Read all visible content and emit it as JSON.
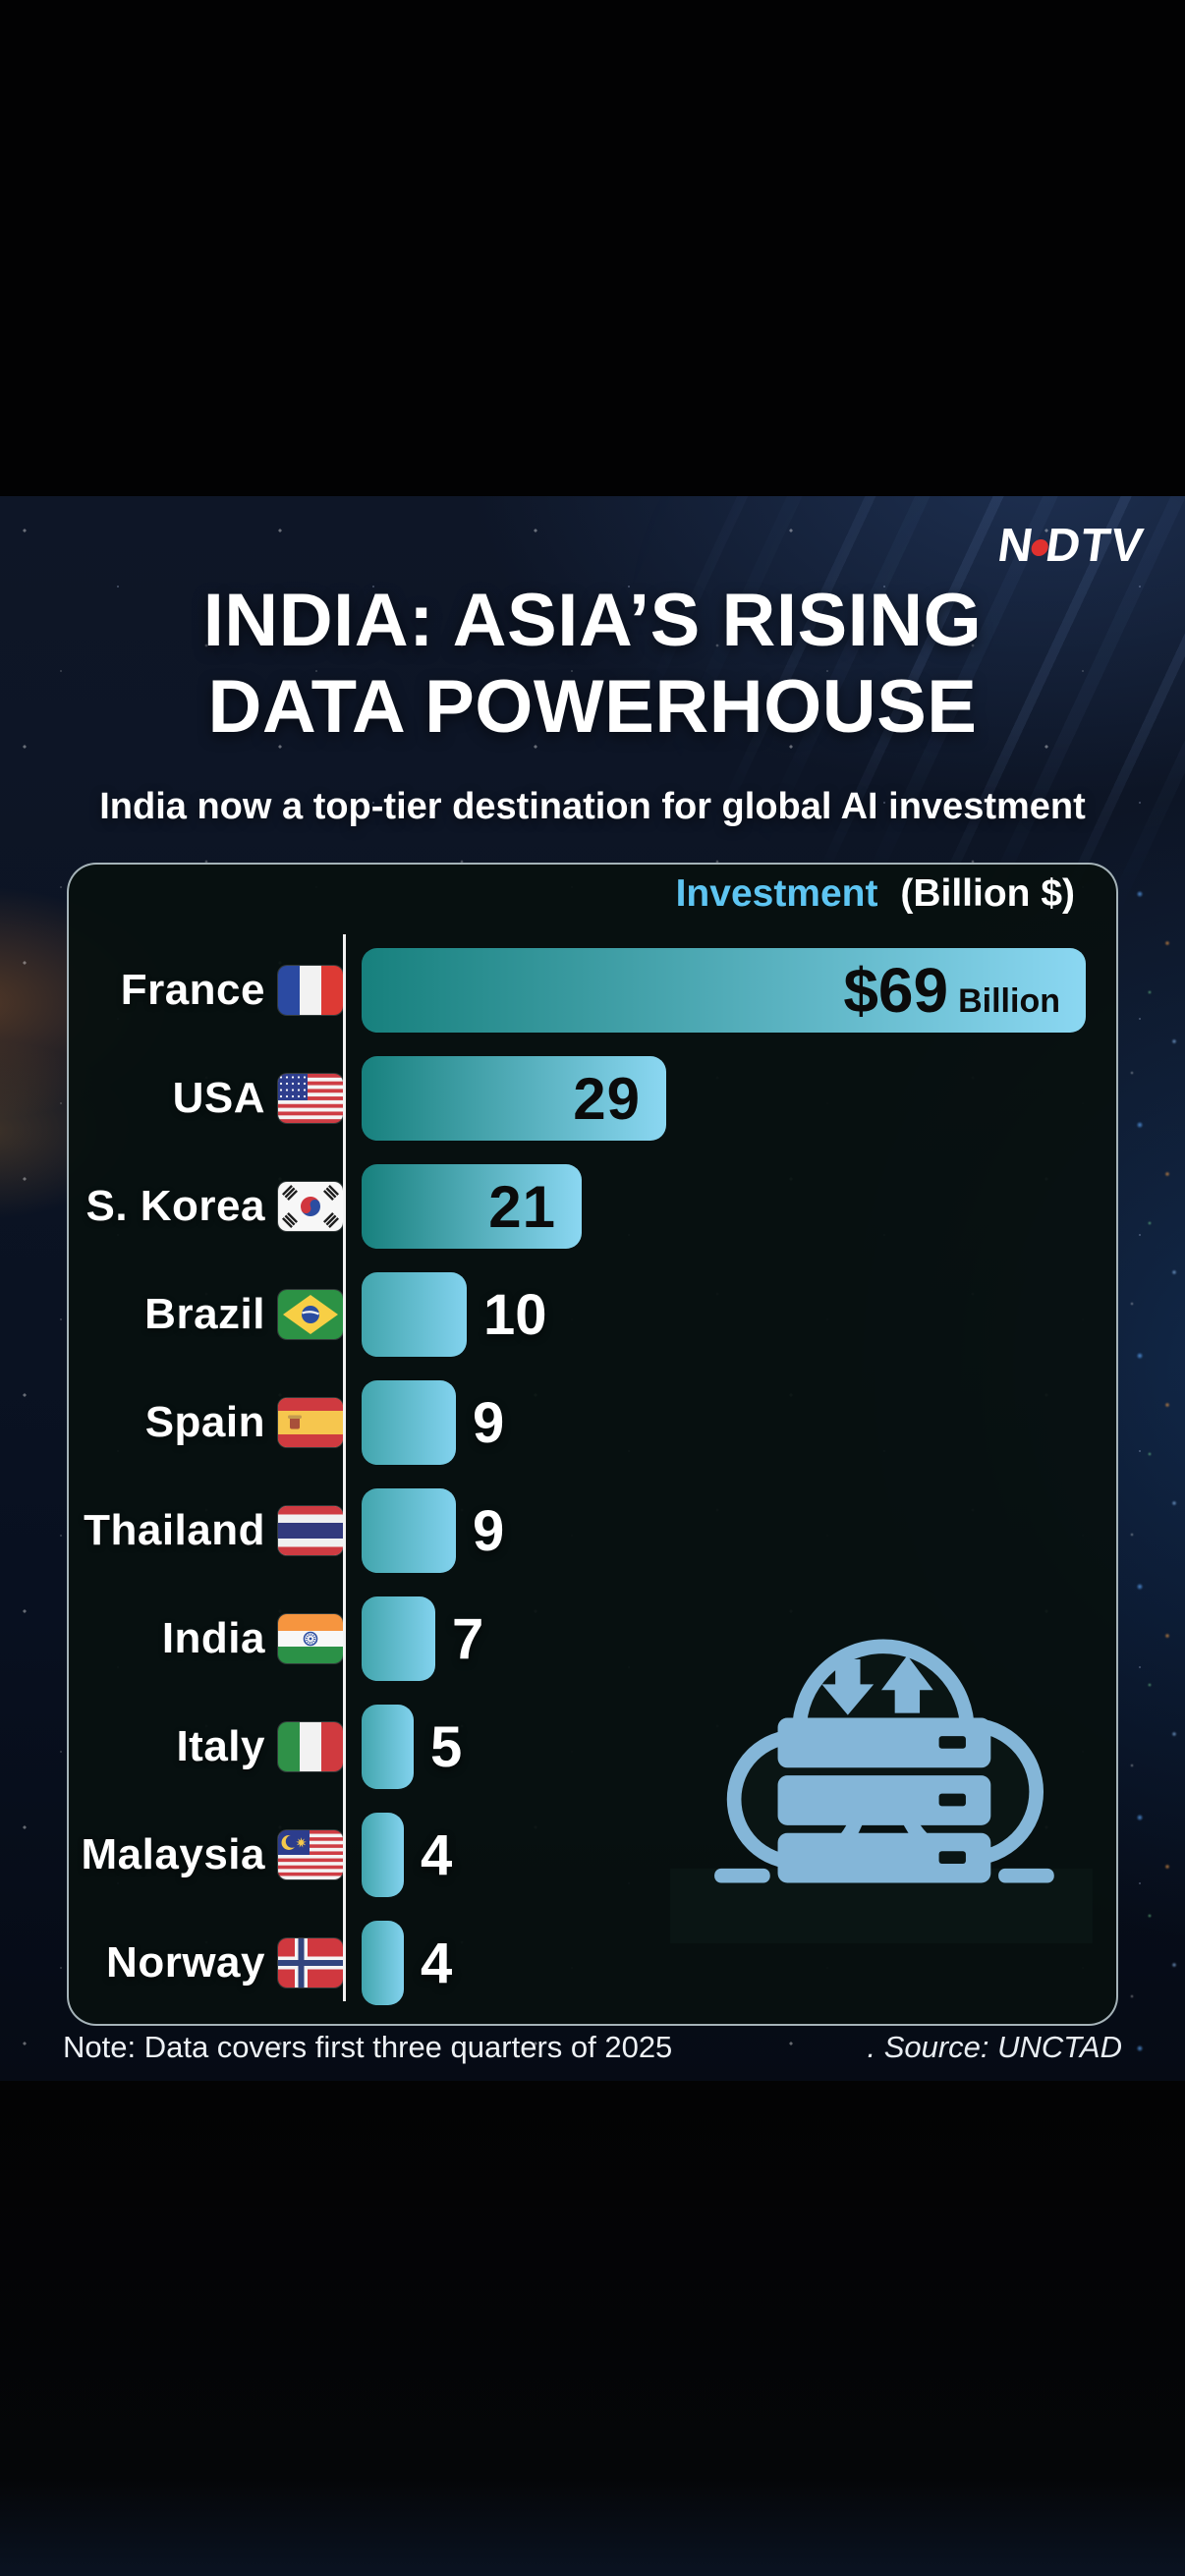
{
  "brand": {
    "name": "NDTV",
    "left": "N",
    "right": "DTV"
  },
  "header": {
    "title_line1": "INDIA: ASIA’S RISING",
    "title_line2": "DATA POWERHOUSE",
    "subtitle": "India now a top-tier destination for global AI investment"
  },
  "legend": {
    "label": "Investment",
    "unit": "(Billion $)"
  },
  "chart_data": {
    "type": "bar",
    "orientation": "horizontal",
    "title": "Investment (Billion $)",
    "xlabel": "Investment (Billion $)",
    "ylabel": "Country",
    "xlim": [
      0,
      69
    ],
    "unit": "Billion $",
    "grid": false,
    "legend_position": "top-right",
    "categories": [
      "France",
      "USA",
      "S. Korea",
      "Brazil",
      "Spain",
      "Thailand",
      "India",
      "Italy",
      "Malaysia",
      "Norway"
    ],
    "values": [
      69,
      29,
      21,
      10,
      9,
      9,
      7,
      5,
      4,
      4
    ],
    "flags": [
      "fr",
      "us",
      "kr",
      "br",
      "es",
      "th",
      "in",
      "it",
      "my",
      "no"
    ],
    "value_labels": [
      "$69",
      "29",
      "21",
      "10",
      "9",
      "9",
      "7",
      "5",
      "4",
      "4"
    ],
    "value_suffixes": [
      "Billion",
      "",
      "",
      "",
      "",
      "",
      "",
      "",
      "",
      ""
    ],
    "label_positions": [
      "inside",
      "inside",
      "inside",
      "outside",
      "outside",
      "outside",
      "outside",
      "outside",
      "outside",
      "outside"
    ]
  },
  "footer": {
    "note": "Note: Data covers first three quarters of 2025",
    "source_prefix": ".",
    "source": "Source: UNCTAD"
  },
  "icons": {
    "cloud_server": "cloud-server-transfer-icon"
  },
  "colors": {
    "accent_blue": "#5ec5f2",
    "logo_dot": "#e0312f",
    "value_inside": "#0b0b0b",
    "value_outside": "#ffffff",
    "axis": "#ffffff",
    "card_bg": "#0a1514",
    "icon_blue": "#84b6d8",
    "bar_gradient_long": [
      "#17807d",
      "#8bd7f2"
    ],
    "bar_gradient_short": [
      "#42a5ad",
      "#82d2ee"
    ]
  }
}
